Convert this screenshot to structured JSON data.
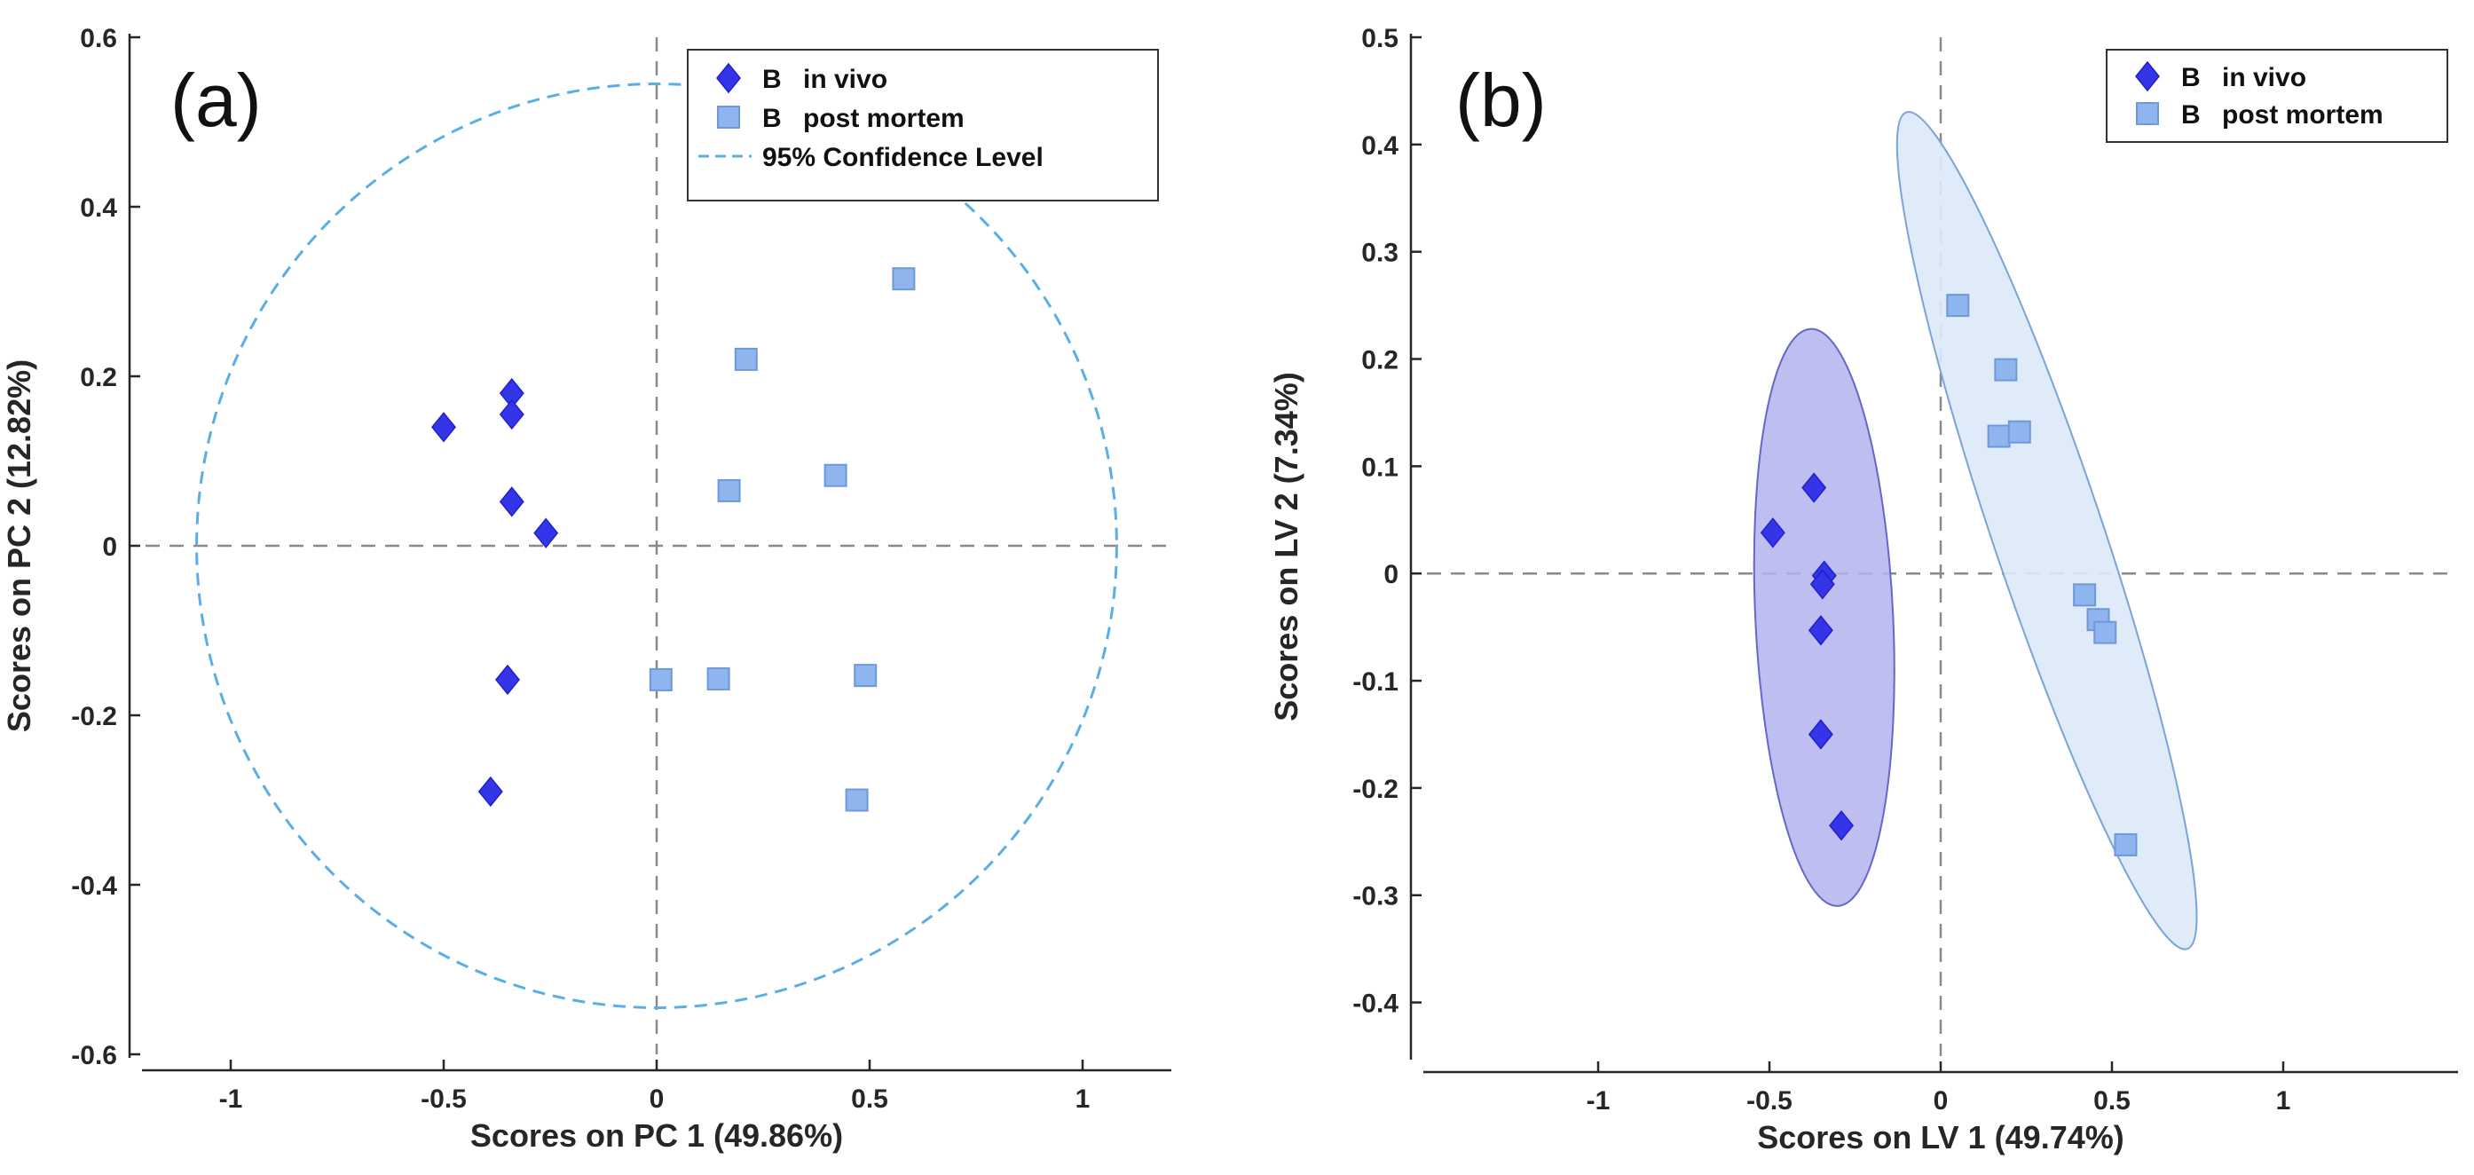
{
  "colors": {
    "in_vivo": "#3434e8",
    "post_mortem": "#8fb5ee",
    "post_mortem_edge": "#6f98dc",
    "confidence": "#5aaee6",
    "ellipse_in_vivo_fill": "#b3b3ee",
    "ellipse_in_vivo_edge": "#6666cc",
    "ellipse_post_mortem_fill": "#dde9f8",
    "ellipse_post_mortem_edge": "#7aa3d8",
    "crosshair": "#8a8a8a",
    "axis": "#262626"
  },
  "chart_data": [
    {
      "type": "scatter",
      "panel_label": "(a)",
      "xlabel": "Scores on PC 1 (49.86%)",
      "ylabel": "Scores on PC 2 (12.82%)",
      "xlim": [
        -1.2,
        1.2
      ],
      "ylim": [
        -0.6,
        0.6
      ],
      "xticks": [
        -1,
        -0.5,
        0,
        0.5,
        1
      ],
      "yticks": [
        -0.6,
        -0.4,
        -0.2,
        0,
        0.2,
        0.4,
        0.6
      ],
      "xtick_labels": [
        "-1",
        "-0.5",
        "0",
        "0.5",
        "1"
      ],
      "ytick_labels": [
        "-0.6",
        "-0.4",
        "-0.2",
        "0",
        "0.2",
        "0.4",
        "0.6"
      ],
      "legend_position": "top-right",
      "legend": [
        {
          "group": "B",
          "label": "in vivo",
          "marker": "diamond"
        },
        {
          "group": "B",
          "label": "post mortem",
          "marker": "square"
        },
        {
          "label": "95% Confidence Level",
          "marker": "dashed-line"
        }
      ],
      "series": [
        {
          "name": "B in vivo",
          "marker": "diamond",
          "x": [
            -0.5,
            -0.34,
            -0.34,
            -0.34,
            -0.26,
            -0.35,
            -0.39
          ],
          "y": [
            0.14,
            0.18,
            0.155,
            0.052,
            0.015,
            -0.158,
            -0.29
          ]
        },
        {
          "name": "B post mortem",
          "marker": "square",
          "x": [
            0.58,
            0.21,
            0.42,
            0.17,
            0.01,
            0.145,
            0.49,
            0.47
          ],
          "y": [
            0.315,
            0.22,
            0.083,
            0.065,
            -0.158,
            -0.157,
            -0.153,
            -0.3
          ]
        }
      ],
      "confidence_ellipse": {
        "label": "95% Confidence Level",
        "center": [
          0,
          0
        ],
        "radius_x": 1.08,
        "radius_y": 0.545
      }
    },
    {
      "type": "scatter",
      "panel_label": "(b)",
      "xlabel": "Scores on LV 1 (49.74%)",
      "ylabel": "Scores on LV 2 (7.34%)",
      "xlim": [
        -1.5,
        1.5
      ],
      "ylim": [
        -0.45,
        0.5
      ],
      "xticks": [
        -1,
        -0.5,
        0,
        0.5,
        1
      ],
      "yticks": [
        -0.4,
        -0.3,
        -0.2,
        -0.1,
        0,
        0.1,
        0.2,
        0.3,
        0.4,
        0.5
      ],
      "xtick_labels": [
        "-1",
        "-0.5",
        "0",
        "0.5",
        "1"
      ],
      "ytick_labels": [
        "-0.4",
        "-0.3",
        "-0.2",
        "-0.1",
        "0",
        "0.1",
        "0.2",
        "0.3",
        "0.4",
        "0.5"
      ],
      "legend_position": "top-right",
      "legend": [
        {
          "group": "B",
          "label": "in vivo",
          "marker": "diamond"
        },
        {
          "group": "B",
          "label": "post mortem",
          "marker": "square"
        }
      ],
      "series": [
        {
          "name": "B in vivo",
          "marker": "diamond",
          "x": [
            -0.49,
            -0.37,
            -0.34,
            -0.345,
            -0.35,
            -0.35,
            -0.29
          ],
          "y": [
            0.038,
            0.08,
            -0.002,
            -0.01,
            -0.053,
            -0.15,
            -0.235
          ]
        },
        {
          "name": "B post mortem",
          "marker": "square",
          "x": [
            0.05,
            0.19,
            0.17,
            0.23,
            0.42,
            0.46,
            0.48,
            0.54
          ],
          "y": [
            0.25,
            0.19,
            0.128,
            0.132,
            -0.02,
            -0.043,
            -0.055,
            -0.253
          ]
        }
      ],
      "class_ellipses": [
        {
          "group": "in vivo",
          "points": [
            [
              -0.38,
              0.228
            ],
            [
              -0.5,
              0.04
            ],
            [
              -0.48,
              -0.2
            ],
            [
              -0.3,
              -0.31
            ],
            [
              -0.25,
              -0.12
            ],
            [
              -0.28,
              0.1
            ]
          ]
        },
        {
          "group": "post mortem",
          "points": [
            [
              -0.1,
              0.43
            ],
            [
              0.05,
              0.3
            ],
            [
              0.45,
              -0.05
            ],
            [
              0.72,
              -0.35
            ],
            [
              0.55,
              -0.25
            ],
            [
              -0.05,
              0.25
            ]
          ]
        }
      ]
    }
  ]
}
